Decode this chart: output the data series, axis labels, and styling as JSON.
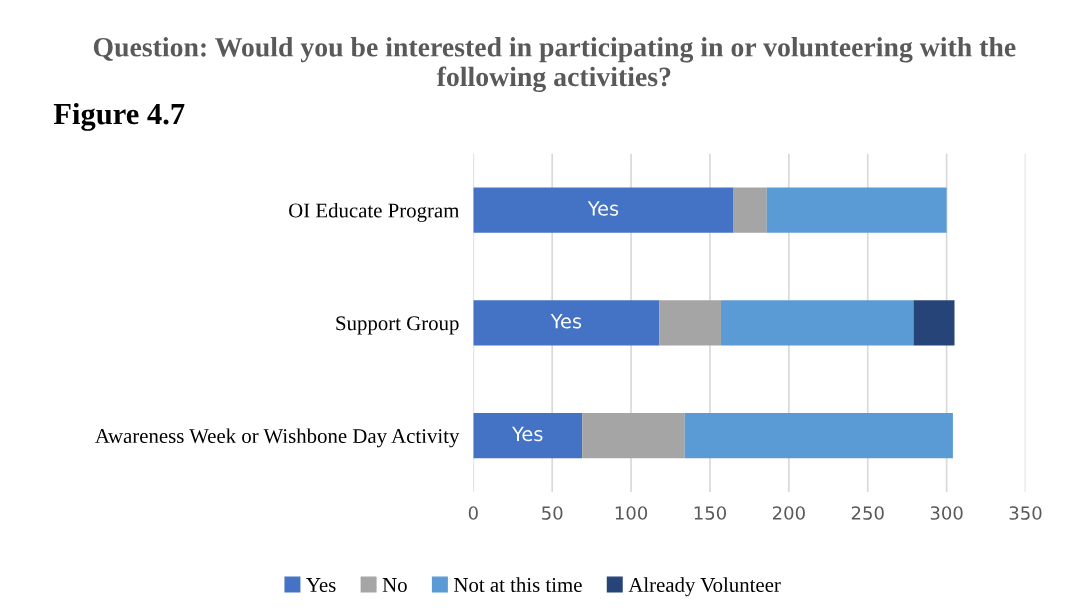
{
  "chart_data": {
    "type": "bar",
    "orientation": "horizontal",
    "stacked": true,
    "title": "Question: Would you be interested in participating in or volunteering with the following activities?",
    "categories": [
      "OI Educate Program",
      "Support Group",
      "Awareness Week or Wishbone Day Activity"
    ],
    "series": [
      {
        "name": "Yes",
        "color": "#4472c4",
        "values": [
          165,
          118,
          69
        ],
        "value_labels": [
          "Yes",
          "Yes",
          "Yes"
        ]
      },
      {
        "name": "No",
        "color": "#a5a5a5",
        "values": [
          21,
          39,
          65
        ]
      },
      {
        "name": "Not at this time",
        "color": "#5b9bd5",
        "values": [
          114,
          122,
          170
        ]
      },
      {
        "name": "Already Volunteer",
        "color": "#264478",
        "values": [
          null,
          26,
          null
        ]
      }
    ],
    "xlim": [
      0,
      350
    ],
    "xticks": [
      0,
      50,
      100,
      150,
      200,
      250,
      300,
      350
    ],
    "grid": "x",
    "legend": "bottom",
    "annotations": [
      "Figure 4.7"
    ]
  }
}
